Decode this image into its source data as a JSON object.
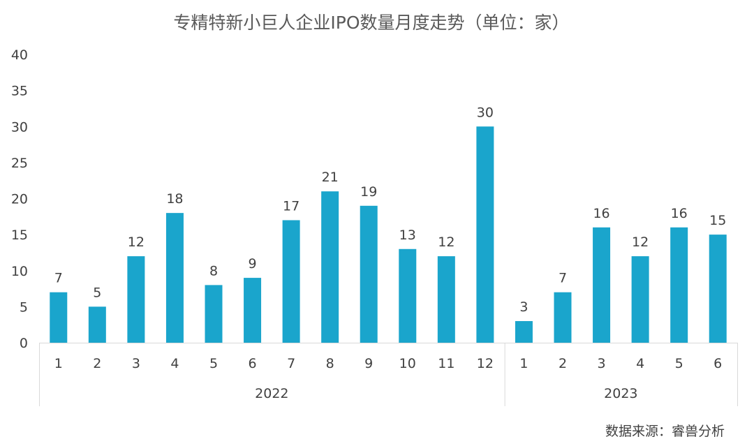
{
  "chart_data": {
    "type": "bar",
    "title": "专精特新小巨人企业IPO数量月度走势（单位：家）",
    "xlabel": "",
    "ylabel": "",
    "ylim": [
      0,
      40
    ],
    "yticks": [
      0,
      5,
      10,
      15,
      20,
      25,
      30,
      35,
      40
    ],
    "grid": false,
    "legend": "none",
    "bar_color": "#1AA5CC",
    "groups": [
      {
        "label": "2022",
        "categories": [
          "1",
          "2",
          "3",
          "4",
          "5",
          "6",
          "7",
          "8",
          "9",
          "10",
          "11",
          "12"
        ],
        "values": [
          7,
          5,
          12,
          18,
          8,
          9,
          17,
          21,
          19,
          13,
          12,
          30
        ]
      },
      {
        "label": "2023",
        "categories": [
          "1",
          "2",
          "3",
          "4",
          "5",
          "6"
        ],
        "values": [
          3,
          7,
          16,
          12,
          16,
          15
        ]
      }
    ],
    "source": "数据来源：睿兽分析"
  }
}
